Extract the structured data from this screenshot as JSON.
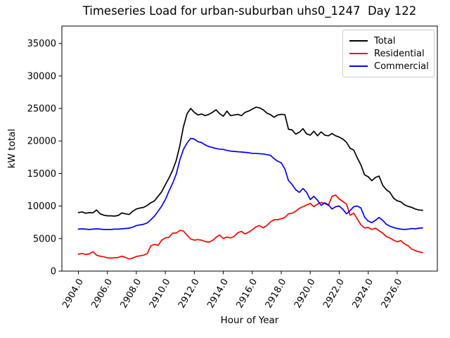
{
  "figure": {
    "title": "Timeseries Load for urban-suburban uhs0_1247  Day 122",
    "xlabel": "Hour of Year",
    "ylabel": "kW total",
    "background": "#ffffff"
  },
  "legend": {
    "position": "upper right",
    "items": [
      {
        "label": "Total",
        "color": "#000000"
      },
      {
        "label": "Residential",
        "color": "#ff0000"
      },
      {
        "label": "Commercial",
        "color": "#0000ff"
      }
    ]
  },
  "chart_data": {
    "type": "line",
    "title": "Timeseries Load for urban-suburban uhs0_1247  Day 122",
    "xlabel": "Hour of Year",
    "ylabel": "kW total",
    "grid": false,
    "legend_position": "upper right",
    "xlim": [
      2902.86,
      2928.77
    ],
    "ylim": [
      0,
      37670
    ],
    "x_start": 2904.0,
    "x_step": 0.25,
    "x_ticks": [
      2904,
      2906,
      2908,
      2910,
      2912,
      2914,
      2916,
      2918,
      2920,
      2922,
      2924,
      2926
    ],
    "x_tick_labels": [
      "2904.0",
      "2906.0",
      "2908.0",
      "2910.0",
      "2912.0",
      "2914.0",
      "2916.0",
      "2918.0",
      "2920.0",
      "2922.0",
      "2924.0",
      "2926.0"
    ],
    "y_ticks": [
      0,
      5000,
      10000,
      15000,
      20000,
      25000,
      30000,
      35000
    ],
    "y_tick_labels": [
      "0",
      "5000",
      "10000",
      "15000",
      "20000",
      "25000",
      "30000",
      "35000"
    ],
    "series": [
      {
        "name": "Total",
        "color": "#000000",
        "values": [
          9000,
          9100,
          8900,
          9000,
          8950,
          9400,
          8800,
          8600,
          8500,
          8500,
          8450,
          8550,
          8950,
          8800,
          8700,
          9200,
          9550,
          9700,
          9800,
          10100,
          10500,
          10800,
          11500,
          12200,
          13300,
          14300,
          15500,
          17000,
          19300,
          22200,
          24200,
          25000,
          24400,
          24000,
          24150,
          23900,
          24100,
          24400,
          24800,
          24200,
          23800,
          24600,
          23900,
          24000,
          24100,
          23900,
          24400,
          24600,
          24900,
          25200,
          25100,
          24800,
          24300,
          24050,
          23650,
          24000,
          24100,
          24050,
          21800,
          21700,
          21050,
          21350,
          21900,
          21100,
          20900,
          21500,
          20800,
          21400,
          20900,
          20800,
          21150,
          20800,
          20600,
          20300,
          19800,
          18900,
          18600,
          17400,
          16300,
          14800,
          14500,
          13900,
          14400,
          14600,
          13200,
          12500,
          12100,
          11200,
          10800,
          10650,
          10200,
          9950,
          9800,
          9550,
          9400,
          9350
        ]
      },
      {
        "name": "Residential",
        "color": "#ff0000",
        "values": [
          2600,
          2700,
          2550,
          2650,
          3000,
          2450,
          2300,
          2200,
          2050,
          2000,
          2050,
          2100,
          2300,
          2100,
          1850,
          2000,
          2250,
          2350,
          2450,
          2700,
          3900,
          4100,
          3950,
          4750,
          5100,
          5200,
          5850,
          5850,
          6270,
          6150,
          5500,
          4950,
          4750,
          4850,
          4750,
          4550,
          4450,
          4700,
          5200,
          5550,
          5000,
          5250,
          5100,
          5350,
          5900,
          6100,
          5700,
          6000,
          6350,
          6800,
          7000,
          6650,
          7000,
          7550,
          7900,
          7900,
          8050,
          8250,
          8800,
          8900,
          9200,
          9650,
          9900,
          10150,
          10400,
          9900,
          10300,
          10550,
          10400,
          10100,
          11500,
          11700,
          11100,
          10700,
          10300,
          8600,
          8900,
          8000,
          7100,
          6650,
          6700,
          6400,
          6600,
          6200,
          5850,
          5300,
          5100,
          4750,
          4500,
          4700,
          4200,
          3900,
          3400,
          3150,
          2950,
          2850
        ]
      },
      {
        "name": "Commercial",
        "color": "#0000ff",
        "values": [
          6450,
          6500,
          6450,
          6400,
          6450,
          6500,
          6450,
          6400,
          6400,
          6400,
          6450,
          6450,
          6500,
          6550,
          6600,
          6750,
          7000,
          7100,
          7200,
          7400,
          7900,
          8450,
          9200,
          10000,
          11000,
          12300,
          13500,
          14900,
          17100,
          18700,
          19700,
          20400,
          20300,
          19900,
          19750,
          19400,
          19150,
          19000,
          18850,
          18750,
          18700,
          18550,
          18450,
          18400,
          18350,
          18300,
          18250,
          18200,
          18100,
          18100,
          18050,
          18000,
          17900,
          17800,
          17300,
          16900,
          16650,
          15700,
          13900,
          13300,
          12500,
          12100,
          12700,
          12100,
          11000,
          11500,
          10900,
          10100,
          10500,
          10200,
          9550,
          9900,
          10000,
          9500,
          8800,
          9300,
          9900,
          10000,
          9700,
          8300,
          7700,
          7450,
          7800,
          8250,
          7800,
          7200,
          6900,
          6700,
          6550,
          6450,
          6400,
          6450,
          6550,
          6500,
          6600,
          6650
        ]
      }
    ]
  }
}
